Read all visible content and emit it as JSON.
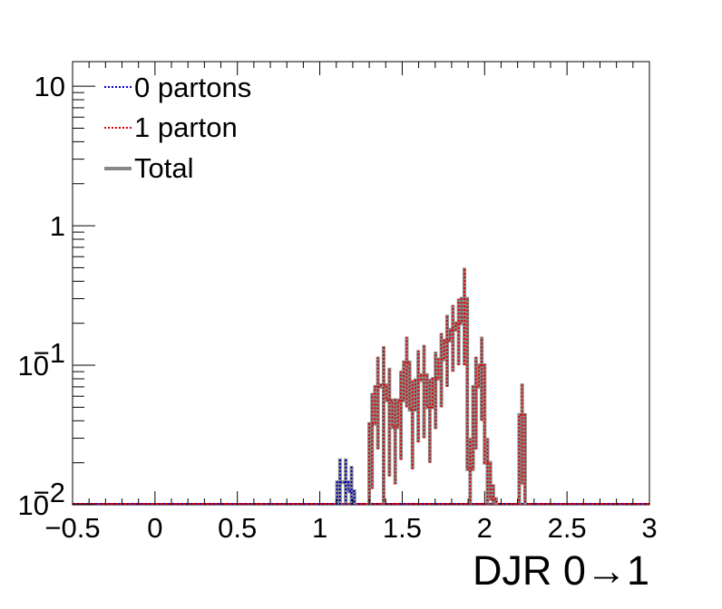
{
  "chart_data": {
    "type": "step-histogram",
    "xlabel": "DJR 0→1",
    "ylabel": "",
    "xlim": [
      -0.5,
      3
    ],
    "ylim": [
      0.01,
      15
    ],
    "yscale": "log",
    "x_ticks": [
      {
        "value": -0.5,
        "label": "−0.5"
      },
      {
        "value": 0,
        "label": "0"
      },
      {
        "value": 0.5,
        "label": "0.5"
      },
      {
        "value": 1,
        "label": "1"
      },
      {
        "value": 1.5,
        "label": "1.5"
      },
      {
        "value": 2,
        "label": "2"
      },
      {
        "value": 2.5,
        "label": "2.5"
      },
      {
        "value": 3,
        "label": "3"
      }
    ],
    "y_ticks": [
      {
        "value": 10,
        "base": "10",
        "exp": ""
      },
      {
        "value": 1,
        "base": "1",
        "exp": ""
      },
      {
        "value": 0.1,
        "base": "10",
        "exp": "−1"
      },
      {
        "value": 0.01,
        "base": "10",
        "exp": "−2"
      }
    ],
    "bin_width": 0.035,
    "legend_position": "top-left",
    "series": [
      {
        "name": "0 partons",
        "color": "#0000cc",
        "style": "dotted",
        "bins": [
          {
            "x0": 1.105,
            "y": 0.0145,
            "err": 0.007
          },
          {
            "x0": 1.14,
            "y": 0.0145,
            "err": 0.007
          },
          {
            "x0": 1.175,
            "y": 0.0125,
            "err": 0.0065
          }
        ]
      },
      {
        "name": "1 parton",
        "color": "#dd0000",
        "style": "dotted",
        "bins": [
          {
            "x0": 1.3,
            "y": 0.038,
            "err": 0.025
          },
          {
            "x0": 1.335,
            "y": 0.07,
            "err": 0.045
          },
          {
            "x0": 1.37,
            "y": 0.072,
            "err": 0.065
          },
          {
            "x0": 1.405,
            "y": 0.056,
            "err": 0.04
          },
          {
            "x0": 1.44,
            "y": 0.036,
            "err": 0.022
          },
          {
            "x0": 1.475,
            "y": 0.056,
            "err": 0.035
          },
          {
            "x0": 1.51,
            "y": 0.105,
            "err": 0.055
          },
          {
            "x0": 1.545,
            "y": 0.048,
            "err": 0.03
          },
          {
            "x0": 1.58,
            "y": 0.078,
            "err": 0.05
          },
          {
            "x0": 1.615,
            "y": 0.085,
            "err": 0.055
          },
          {
            "x0": 1.65,
            "y": 0.05,
            "err": 0.03
          },
          {
            "x0": 1.685,
            "y": 0.08,
            "err": 0.045
          },
          {
            "x0": 1.72,
            "y": 0.11,
            "err": 0.06
          },
          {
            "x0": 1.755,
            "y": 0.15,
            "err": 0.08
          },
          {
            "x0": 1.79,
            "y": 0.18,
            "err": 0.09
          },
          {
            "x0": 1.825,
            "y": 0.2,
            "err": 0.1
          },
          {
            "x0": 1.86,
            "y": 0.3,
            "err": 0.2
          },
          {
            "x0": 1.895,
            "y": 0.018,
            "err": 0.012
          },
          {
            "x0": 1.93,
            "y": 0.07,
            "err": 0.045
          },
          {
            "x0": 1.965,
            "y": 0.1,
            "err": 0.06
          },
          {
            "x0": 2.0,
            "y": 0.02,
            "err": 0.01
          },
          {
            "x0": 2.035,
            "y": 0.011,
            "err": 0.003
          },
          {
            "x0": 2.21,
            "y": 0.044,
            "err": 0.03
          }
        ]
      },
      {
        "name": "Total",
        "color": "#888888",
        "style": "solid",
        "bins": []
      }
    ]
  }
}
